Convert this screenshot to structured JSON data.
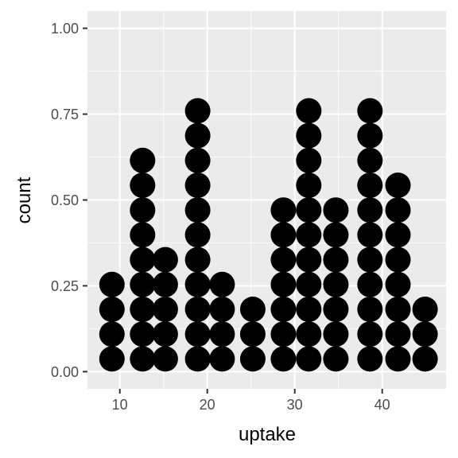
{
  "chart_data": {
    "type": "dotplot",
    "title": "",
    "xlabel": "uptake",
    "ylabel": "count",
    "x_ticks": [
      "10",
      "20",
      "30",
      "40"
    ],
    "x_tick_values": [
      10,
      20,
      30,
      40
    ],
    "y_ticks": [
      "0.00",
      "0.25",
      "0.50",
      "0.75",
      "1.00"
    ],
    "y_tick_values": [
      0,
      0.25,
      0.5,
      0.75,
      1.0
    ],
    "xlim": [
      6.3,
      47.3
    ],
    "ylim": [
      -0.05,
      1.05
    ],
    "grid": true,
    "legend": "none",
    "panel_background": "#ebebeb",
    "grid_color": "#ffffff",
    "dot_color": "#000000",
    "bins": [
      {
        "x": 9.1,
        "count": 4
      },
      {
        "x": 12.6,
        "count": 9
      },
      {
        "x": 15.2,
        "count": 5
      },
      {
        "x": 18.9,
        "count": 11
      },
      {
        "x": 21.7,
        "count": 4
      },
      {
        "x": 25.2,
        "count": 3
      },
      {
        "x": 28.7,
        "count": 7
      },
      {
        "x": 31.6,
        "count": 11
      },
      {
        "x": 34.7,
        "count": 7
      },
      {
        "x": 38.6,
        "count": 11
      },
      {
        "x": 41.8,
        "count": 8
      },
      {
        "x": 44.9,
        "count": 3
      }
    ]
  }
}
